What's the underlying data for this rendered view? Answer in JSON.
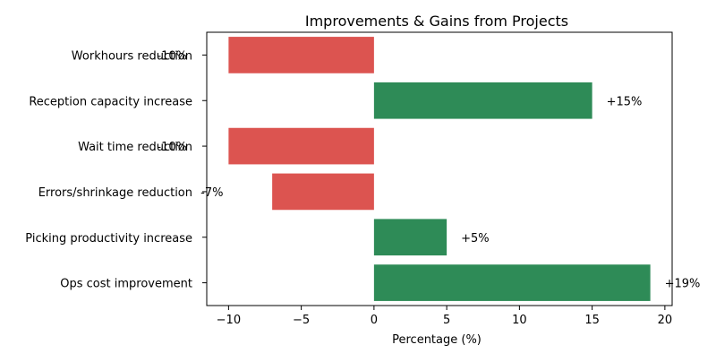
{
  "chart_data": {
    "type": "bar",
    "orientation": "horizontal",
    "title": "Improvements & Gains from Projects",
    "xlabel": "Percentage (%)",
    "ylabel": "",
    "xlim": [
      -11.5,
      20.5
    ],
    "xticks": [
      -10,
      -5,
      0,
      5,
      10,
      15,
      20
    ],
    "xtick_labels": [
      "−10",
      "−5",
      "0",
      "5",
      "10",
      "15",
      "20"
    ],
    "grid": false,
    "categories": [
      "Workhours reduction",
      "Reception capacity increase",
      "Wait time reduction",
      "Errors/shrinkage reduction",
      "Picking productivity increase",
      "Ops cost improvement"
    ],
    "values": [
      -10,
      15,
      -10,
      -7,
      5,
      19
    ],
    "data_labels": [
      "-10%",
      "+15%",
      "-10%",
      "-7%",
      "+5%",
      "+19%"
    ],
    "colors": {
      "positive": "#2e8b57",
      "negative": "#dc5450"
    }
  }
}
